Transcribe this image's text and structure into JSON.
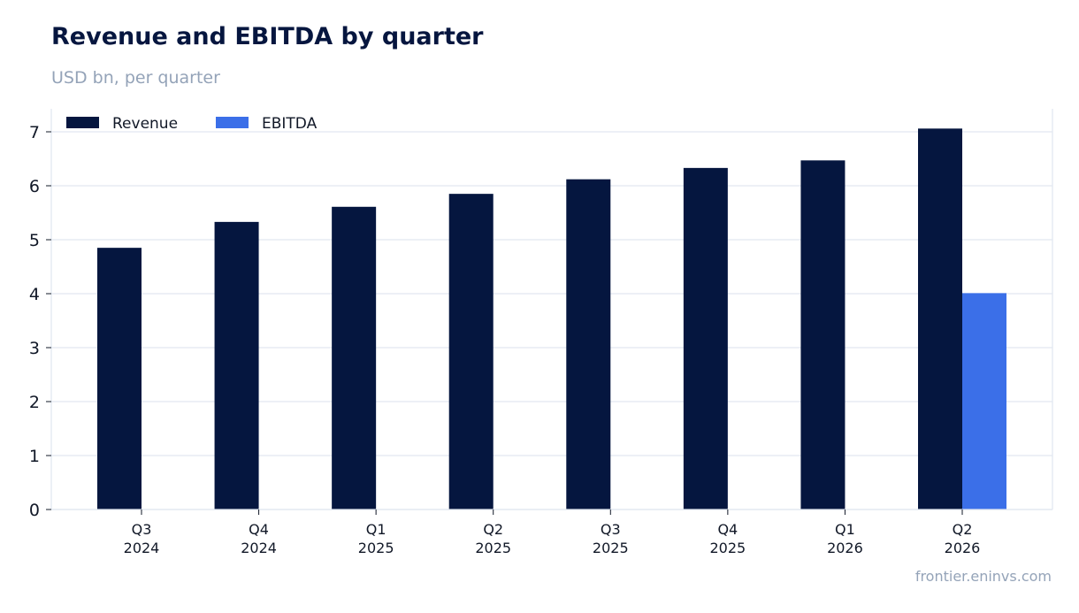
{
  "title": "Revenue and EBITDA by quarter",
  "subtitle": "USD bn, per quarter",
  "source": "frontier.eninvs.com",
  "chart_data": {
    "type": "bar",
    "categories": [
      [
        "Q3",
        "2024"
      ],
      [
        "Q4",
        "2024"
      ],
      [
        "Q1",
        "2025"
      ],
      [
        "Q2",
        "2025"
      ],
      [
        "Q3",
        "2025"
      ],
      [
        "Q4",
        "2025"
      ],
      [
        "Q1",
        "2026"
      ],
      [
        "Q2",
        "2026"
      ]
    ],
    "series": [
      {
        "name": "Revenue",
        "color": "#05163f",
        "values": [
          4.85,
          5.33,
          5.61,
          5.85,
          6.12,
          6.33,
          6.47,
          7.06
        ]
      },
      {
        "name": "EBITDA",
        "color": "#3b6fe8",
        "values": [
          null,
          null,
          null,
          null,
          null,
          null,
          null,
          4.01
        ]
      }
    ],
    "ylim": [
      0,
      7.4
    ],
    "yticks": [
      0,
      1,
      2,
      3,
      4,
      5,
      6,
      7
    ],
    "grid": true,
    "legend": "top-left"
  }
}
